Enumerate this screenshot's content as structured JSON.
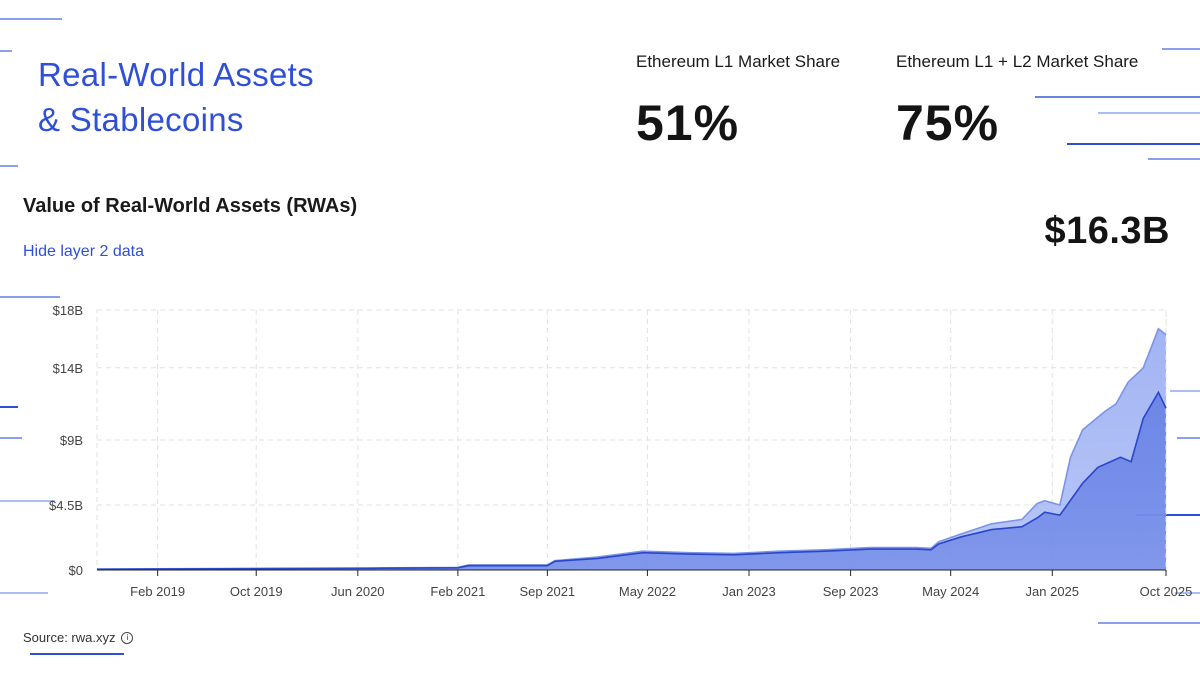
{
  "header": {
    "title_line1": "Real-World Assets",
    "title_line2": "& Stablecoins"
  },
  "stats": [
    {
      "label": "Ethereum L1 Market Share",
      "value": "51%"
    },
    {
      "label": "Ethereum L1 + L2 Market Share",
      "value": "75%"
    }
  ],
  "chart_header": {
    "title": "Value of Real-World Assets (RWAs)",
    "toggle_label": "Hide layer 2 data",
    "current_value": "$16.3B"
  },
  "source": {
    "label": "Source: rwa.xyz",
    "icon": "info-icon"
  },
  "colors": {
    "accent": "#2f4fd6",
    "l1_fill": "#6a84e6",
    "l2_fill": "#9db0f3",
    "line": "#2a47c9"
  },
  "chart_data": {
    "type": "area",
    "title": "Value of Real-World Assets (RWAs)",
    "xlabel": "",
    "ylabel": "",
    "ylim": [
      0,
      18
    ],
    "y_unit": "B USD",
    "y_ticks": [
      0,
      4.5,
      9,
      14,
      18
    ],
    "y_tick_labels": [
      "$0",
      "$4.5B",
      "$9B",
      "$14B",
      "$18B"
    ],
    "x_ticks": [
      {
        "t": 1.1,
        "label": "Feb 2019"
      },
      {
        "t": 1.75,
        "label": "Oct 2019"
      },
      {
        "t": 2.42,
        "label": "Jun 2020"
      },
      {
        "t": 3.08,
        "label": "Feb 2021"
      },
      {
        "t": 3.67,
        "label": "Sep 2021"
      },
      {
        "t": 4.33,
        "label": "May 2022"
      },
      {
        "t": 5.0,
        "label": "Jan 2023"
      },
      {
        "t": 5.67,
        "label": "Sep 2023"
      },
      {
        "t": 6.33,
        "label": "May 2024"
      },
      {
        "t": 7.0,
        "label": "Jan 2025"
      },
      {
        "t": 7.75,
        "label": "Oct 2025"
      }
    ],
    "x_range": [
      0.7,
      7.75
    ],
    "series": [
      {
        "name": "Ethereum L1",
        "x": [
          0.7,
          1.5,
          2.5,
          3.08,
          3.15,
          3.5,
          3.67,
          3.72,
          4.0,
          4.3,
          4.6,
          4.9,
          5.2,
          5.5,
          5.8,
          6.1,
          6.2,
          6.25,
          6.4,
          6.6,
          6.8,
          6.9,
          6.95,
          7.05,
          7.2,
          7.3,
          7.45,
          7.52,
          7.6,
          7.7,
          7.75
        ],
        "values": [
          0.05,
          0.08,
          0.12,
          0.15,
          0.3,
          0.3,
          0.3,
          0.6,
          0.8,
          1.2,
          1.1,
          1.05,
          1.2,
          1.3,
          1.45,
          1.45,
          1.4,
          1.8,
          2.3,
          2.8,
          3.0,
          3.6,
          4.0,
          3.8,
          6.0,
          7.1,
          7.8,
          7.5,
          10.5,
          12.3,
          11.2
        ]
      },
      {
        "name": "Ethereum L1 + L2",
        "x": [
          0.7,
          1.5,
          2.5,
          3.08,
          3.15,
          3.5,
          3.67,
          3.72,
          4.0,
          4.3,
          4.6,
          4.9,
          5.2,
          5.5,
          5.8,
          6.1,
          6.2,
          6.25,
          6.4,
          6.6,
          6.8,
          6.9,
          6.95,
          7.05,
          7.12,
          7.2,
          7.35,
          7.42,
          7.5,
          7.6,
          7.7,
          7.75
        ],
        "values": [
          0.06,
          0.1,
          0.14,
          0.18,
          0.35,
          0.35,
          0.35,
          0.65,
          0.9,
          1.3,
          1.2,
          1.15,
          1.3,
          1.4,
          1.55,
          1.55,
          1.5,
          1.95,
          2.5,
          3.2,
          3.5,
          4.6,
          4.8,
          4.5,
          7.8,
          9.7,
          11.0,
          11.5,
          13.0,
          14.0,
          16.7,
          16.3
        ]
      }
    ]
  }
}
